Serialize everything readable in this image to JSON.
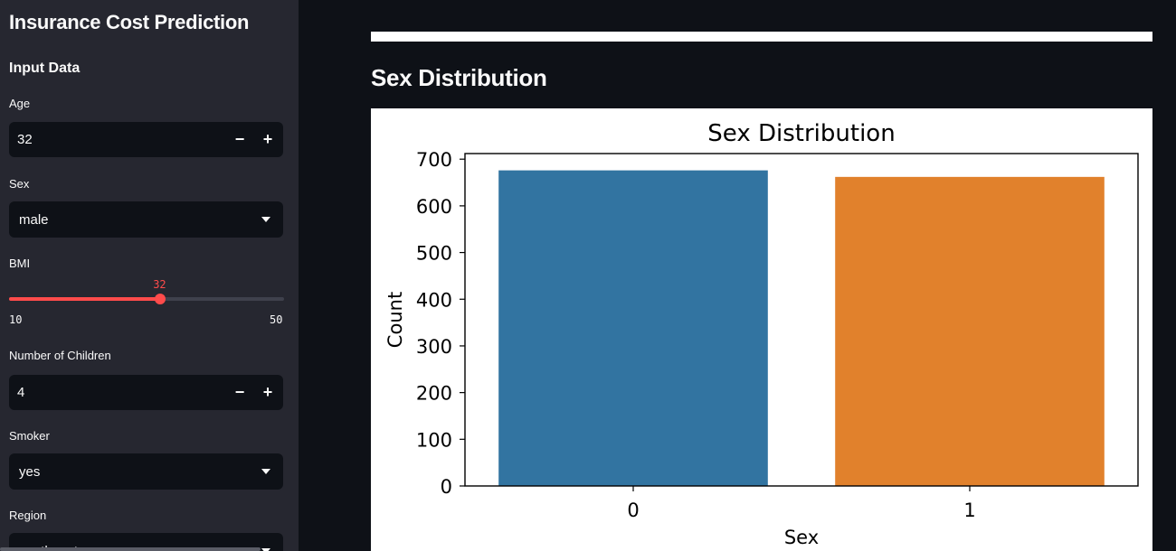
{
  "sidebar": {
    "title": "Insurance Cost Prediction",
    "section": "Input Data",
    "age": {
      "label": "Age",
      "value": "32",
      "minus": "−",
      "plus": "+"
    },
    "sex": {
      "label": "Sex",
      "value": "male"
    },
    "bmi": {
      "label": "BMI",
      "value": "32",
      "min": "10",
      "max": "50",
      "value_num": 32,
      "min_num": 10,
      "max_num": 50,
      "accent": "#ff4b4b"
    },
    "children": {
      "label": "Number of Children",
      "value": "4",
      "minus": "−",
      "plus": "+"
    },
    "smoker": {
      "label": "Smoker",
      "value": "yes"
    },
    "region": {
      "label": "Region",
      "value": "southeast"
    }
  },
  "main": {
    "heading": "Sex Distribution"
  },
  "chart_data": {
    "type": "bar",
    "title": "Sex Distribution",
    "xlabel": "Sex",
    "ylabel": "Count",
    "categories": [
      "0",
      "1"
    ],
    "values": [
      676,
      662
    ],
    "colors": [
      "#3274a1",
      "#e1812c"
    ],
    "ylim": [
      0,
      712
    ],
    "yticks": [
      0,
      100,
      200,
      300,
      400,
      500,
      600,
      700
    ],
    "grid": false
  }
}
